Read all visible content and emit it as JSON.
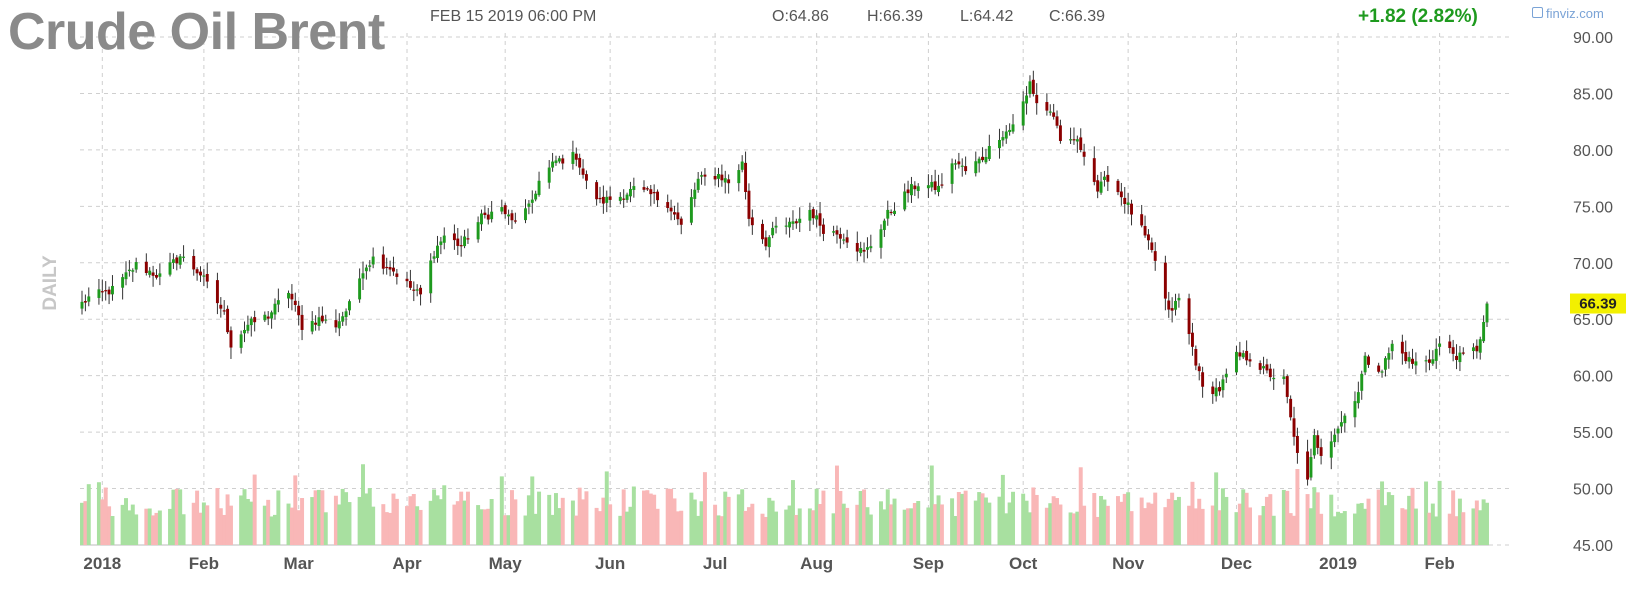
{
  "header": {
    "title": "Crude Oil Brent",
    "timestamp": "FEB 15 2019 06:00 PM",
    "open": "O:64.86",
    "high": "H:66.39",
    "low": "L:64.42",
    "close": "C:66.39",
    "change": "+1.82 (2.82%)",
    "brand": "finviz.com"
  },
  "colors": {
    "up": "#1e9a1e",
    "down": "#8b0000",
    "volume_up": "#a8e0a0",
    "volume_down": "#f9b7b7",
    "last_price_badge": "#f3f000",
    "grid": "#cfcfcf"
  },
  "chart_data": {
    "type": "candlestick",
    "period_label": "DAILY",
    "last_price": "66.39",
    "last_price_value": 66.39,
    "ylim": [
      45,
      90
    ],
    "y_ticks": [
      45,
      50,
      55,
      60,
      65,
      70,
      75,
      80,
      85,
      90
    ],
    "y_tick_labels": [
      "45.00",
      "50.00",
      "55.00",
      "60.00",
      "65.00",
      "70.00",
      "75.00",
      "80.00",
      "85.00",
      "90.00"
    ],
    "x_ticks": [
      {
        "label": "2018",
        "date": "2018-01-02"
      },
      {
        "label": "Feb",
        "date": "2018-02-01"
      },
      {
        "label": "Mar",
        "date": "2018-03-01"
      },
      {
        "label": "Apr",
        "date": "2018-04-02"
      },
      {
        "label": "May",
        "date": "2018-05-01"
      },
      {
        "label": "Jun",
        "date": "2018-06-01"
      },
      {
        "label": "Jul",
        "date": "2018-07-02"
      },
      {
        "label": "Aug",
        "date": "2018-08-01"
      },
      {
        "label": "Sep",
        "date": "2018-09-03"
      },
      {
        "label": "Oct",
        "date": "2018-10-01"
      },
      {
        "label": "Nov",
        "date": "2018-11-01"
      },
      {
        "label": "Dec",
        "date": "2018-12-03"
      },
      {
        "label": "2019",
        "date": "2019-01-02"
      },
      {
        "label": "Feb",
        "date": "2019-02-01"
      }
    ],
    "close_path": [
      [
        "2017-12-27",
        66.4
      ],
      [
        "2017-12-29",
        66.9
      ],
      [
        "2018-01-05",
        67.6
      ],
      [
        "2018-01-12",
        69.8
      ],
      [
        "2018-01-19",
        68.8
      ],
      [
        "2018-01-25",
        70.6
      ],
      [
        "2018-01-31",
        69.0
      ],
      [
        "2018-02-07",
        65.5
      ],
      [
        "2018-02-09",
        62.8
      ],
      [
        "2018-02-14",
        64.5
      ],
      [
        "2018-02-20",
        65.3
      ],
      [
        "2018-02-26",
        67.5
      ],
      [
        "2018-03-02",
        64.4
      ],
      [
        "2018-03-07",
        65.0
      ],
      [
        "2018-03-12",
        64.5
      ],
      [
        "2018-03-16",
        66.2
      ],
      [
        "2018-03-20",
        69.5
      ],
      [
        "2018-03-23",
        70.4
      ],
      [
        "2018-03-28",
        69.6
      ],
      [
        "2018-04-03",
        67.8
      ],
      [
        "2018-04-06",
        67.1
      ],
      [
        "2018-04-10",
        71.0
      ],
      [
        "2018-04-13",
        72.4
      ],
      [
        "2018-04-18",
        71.5
      ],
      [
        "2018-04-24",
        74.0
      ],
      [
        "2018-04-30",
        74.8
      ],
      [
        "2018-05-03",
        73.6
      ],
      [
        "2018-05-08",
        74.8
      ],
      [
        "2018-05-11",
        77.2
      ],
      [
        "2018-05-16",
        79.0
      ],
      [
        "2018-05-22",
        79.5
      ],
      [
        "2018-05-25",
        77.0
      ],
      [
        "2018-05-29",
        75.4
      ],
      [
        "2018-06-04",
        75.9
      ],
      [
        "2018-06-08",
        76.5
      ],
      [
        "2018-06-13",
        76.0
      ],
      [
        "2018-06-18",
        75.3
      ],
      [
        "2018-06-22",
        73.2
      ],
      [
        "2018-06-27",
        77.3
      ],
      [
        "2018-07-03",
        77.8
      ],
      [
        "2018-07-06",
        77.1
      ],
      [
        "2018-07-10",
        78.8
      ],
      [
        "2018-07-12",
        74.0
      ],
      [
        "2018-07-17",
        71.8
      ],
      [
        "2018-07-20",
        73.1
      ],
      [
        "2018-07-25",
        73.4
      ],
      [
        "2018-07-30",
        74.7
      ],
      [
        "2018-08-03",
        73.0
      ],
      [
        "2018-08-09",
        72.4
      ],
      [
        "2018-08-15",
        70.8
      ],
      [
        "2018-08-17",
        71.6
      ],
      [
        "2018-08-22",
        74.3
      ],
      [
        "2018-08-28",
        76.3
      ],
      [
        "2018-08-31",
        77.0
      ],
      [
        "2018-09-06",
        76.6
      ],
      [
        "2018-09-11",
        79.0
      ],
      [
        "2018-09-14",
        78.1
      ],
      [
        "2018-09-19",
        79.3
      ],
      [
        "2018-09-24",
        81.3
      ],
      [
        "2018-09-27",
        81.8
      ],
      [
        "2018-10-02",
        84.7
      ],
      [
        "2018-10-03",
        86.0
      ],
      [
        "2018-10-05",
        84.2
      ],
      [
        "2018-10-10",
        83.1
      ],
      [
        "2018-10-12",
        80.4
      ],
      [
        "2018-10-16",
        81.0
      ],
      [
        "2018-10-19",
        79.8
      ],
      [
        "2018-10-23",
        76.4
      ],
      [
        "2018-10-26",
        77.6
      ],
      [
        "2018-10-31",
        75.5
      ],
      [
        "2018-11-05",
        72.9
      ],
      [
        "2018-11-09",
        70.2
      ],
      [
        "2018-11-13",
        65.5
      ],
      [
        "2018-11-16",
        66.8
      ],
      [
        "2018-11-20",
        62.5
      ],
      [
        "2018-11-23",
        58.8
      ],
      [
        "2018-11-28",
        58.8
      ],
      [
        "2018-12-03",
        61.7
      ],
      [
        "2018-12-07",
        61.6
      ],
      [
        "2018-12-12",
        60.2
      ],
      [
        "2018-12-17",
        59.6
      ],
      [
        "2018-12-20",
        54.4
      ],
      [
        "2018-12-24",
        50.5
      ],
      [
        "2018-12-26",
        54.5
      ],
      [
        "2018-12-28",
        53.2
      ],
      [
        "2019-01-03",
        55.9
      ],
      [
        "2019-01-08",
        58.7
      ],
      [
        "2019-01-10",
        61.4
      ],
      [
        "2019-01-15",
        60.6
      ],
      [
        "2019-01-18",
        62.7
      ],
      [
        "2019-01-24",
        61.1
      ],
      [
        "2019-01-29",
        61.3
      ],
      [
        "2019-02-01",
        62.8
      ],
      [
        "2019-02-07",
        61.6
      ],
      [
        "2019-02-12",
        62.4
      ],
      [
        "2019-02-14",
        64.6
      ],
      [
        "2019-02-15",
        66.39
      ]
    ]
  }
}
